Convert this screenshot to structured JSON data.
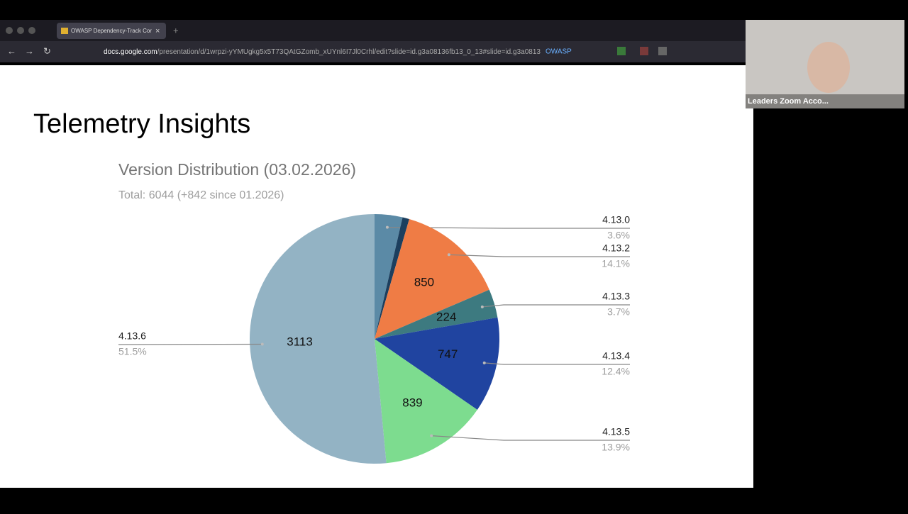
{
  "browser": {
    "tab_title": "OWASP Dependency-Track Cor",
    "url_host": "docs.google.com",
    "url_path": "/presentation/d/1wrpzi-yYMUgkg5x5T73QAtGZomb_xUYnl6I7Jl0Crhl/edit?slide=id.g3a08136fb13_0_13#slide=id.g3a0813",
    "bookmark": "OWASP"
  },
  "participant": {
    "name": "Leaders Zoom Acco..."
  },
  "slide": {
    "title": "Telemetry Insights"
  },
  "chart_data": {
    "type": "pie",
    "title": "Version Distribution (03.02.2026)",
    "subtitle": "Total: 6044 (+842 since 01.2026)",
    "categories": [
      "4.13.0",
      null,
      "4.13.2",
      "4.13.3",
      "4.13.4",
      "4.13.5",
      "4.13.6"
    ],
    "values": [
      218,
      53,
      850,
      224,
      747,
      839,
      3113
    ],
    "value_labels": [
      null,
      null,
      "850",
      "224",
      "747",
      "839",
      "3113"
    ],
    "percent_labels": [
      "3.6%",
      null,
      "14.1%",
      "3.7%",
      "12.4%",
      "13.9%",
      "51.5%"
    ],
    "colors": [
      "#5b8aa6",
      "#1c3f5e",
      "#ef7c45",
      "#3d7a80",
      "#2044a0",
      "#7ddc8f",
      "#93b3c4"
    ]
  }
}
